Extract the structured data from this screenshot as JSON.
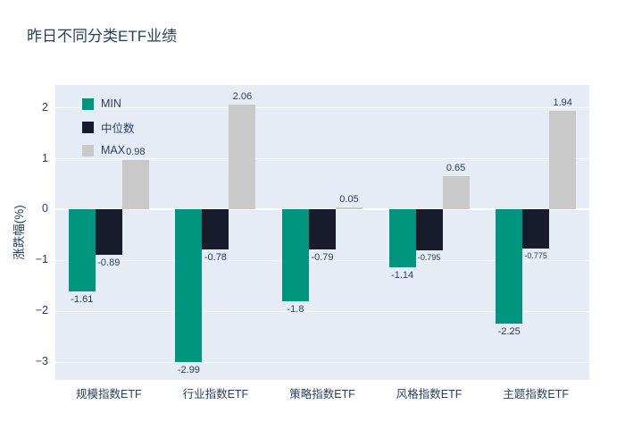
{
  "chart_data": {
    "type": "bar",
    "title": "昨日不同分类ETF业绩",
    "ylabel": "涨跌幅(%)",
    "categories": [
      "规模指数ETF",
      "行业指数ETF",
      "策略指数ETF",
      "风格指数ETF",
      "主题指数ETF"
    ],
    "series": [
      {
        "name": "MIN",
        "key": "min",
        "color": "#00957e",
        "values": [
          -1.61,
          -2.99,
          -1.8,
          -1.14,
          -2.25
        ]
      },
      {
        "name": "中位数",
        "key": "median",
        "color": "#181b2b",
        "values": [
          -0.89,
          -0.78,
          -0.79,
          -0.795,
          -0.775
        ]
      },
      {
        "name": "MAX",
        "key": "max",
        "color": "#c9c9c9",
        "values": [
          0.98,
          2.06,
          0.05,
          0.65,
          1.94
        ]
      }
    ],
    "ylim": [
      -3.35,
      2.45
    ],
    "yticks": [
      2,
      1,
      0,
      -1,
      -2,
      -3
    ],
    "grid": true,
    "legend_position": "inside-top-left",
    "plot_bg": "#e5ecf6",
    "page_bg": "#ffffff",
    "text_color": "#2a3f5f"
  }
}
